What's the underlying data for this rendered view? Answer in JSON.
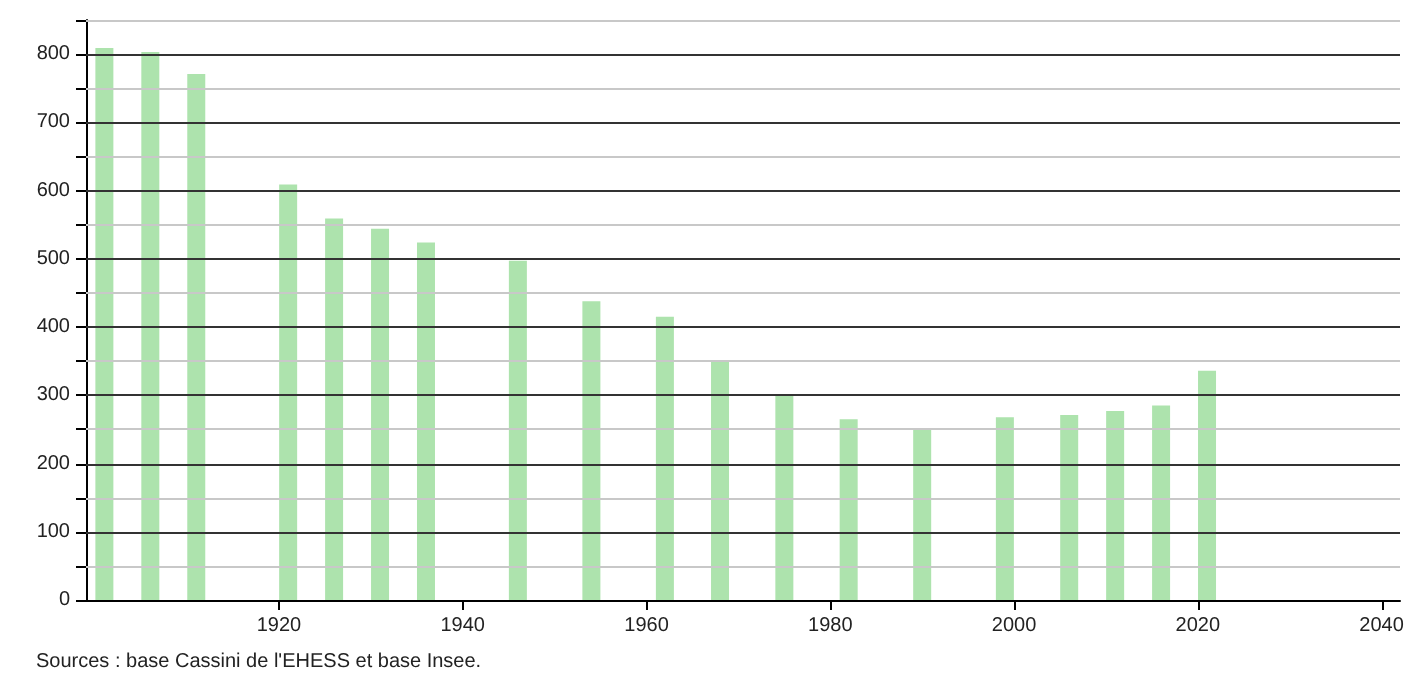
{
  "chart_data": {
    "type": "bar",
    "x": [
      1901,
      1906,
      1911,
      1921,
      1926,
      1931,
      1936,
      1946,
      1954,
      1962,
      1968,
      1975,
      1982,
      1990,
      1999,
      2006,
      2011,
      2016,
      2021
    ],
    "values": [
      809,
      803,
      771,
      609,
      559,
      544,
      524,
      497,
      438,
      415,
      350,
      299,
      265,
      249,
      268,
      271,
      277,
      285,
      336
    ],
    "color": "#ade3ad",
    "xlim": [
      1899,
      2042
    ],
    "xticks": [
      1920,
      1940,
      1960,
      1980,
      2000,
      2020,
      2040
    ],
    "ylim": [
      0,
      850
    ],
    "yticks": [
      0,
      {
        "value": 50,
        "label": null
      },
      100,
      {
        "value": 150,
        "label": null
      },
      200,
      {
        "value": 250,
        "label": null
      },
      300,
      {
        "value": 350,
        "label": null
      },
      400,
      {
        "value": 450,
        "label": null
      },
      500,
      {
        "value": 550,
        "label": null
      },
      600,
      {
        "value": 650,
        "label": null
      },
      700,
      {
        "value": 750,
        "label": null
      },
      800,
      {
        "value": 850,
        "label": null
      }
    ],
    "grid": "y",
    "annotations": [
      "Sources : base Cassini de l'EHESS et base Insee."
    ]
  }
}
